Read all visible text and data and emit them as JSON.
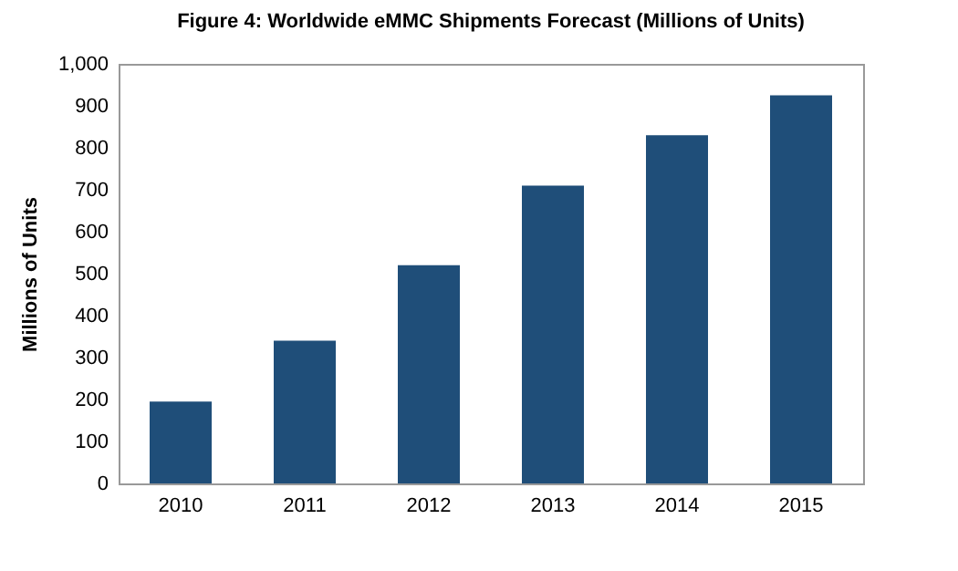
{
  "chart_data": {
    "type": "bar",
    "title": "Figure 4: Worldwide eMMC Shipments Forecast (Millions  of Units)",
    "ylabel": "Millions of Units",
    "categories": [
      "2010",
      "2011",
      "2012",
      "2013",
      "2014",
      "2015"
    ],
    "values": [
      195,
      340,
      520,
      710,
      830,
      925
    ],
    "color": "#1f4e79",
    "ylim": [
      0,
      1000
    ],
    "yticks": [
      0,
      100,
      200,
      300,
      400,
      500,
      600,
      700,
      800,
      900,
      {
        "value": 1000,
        "label": "1,000"
      }
    ],
    "grid": false
  }
}
